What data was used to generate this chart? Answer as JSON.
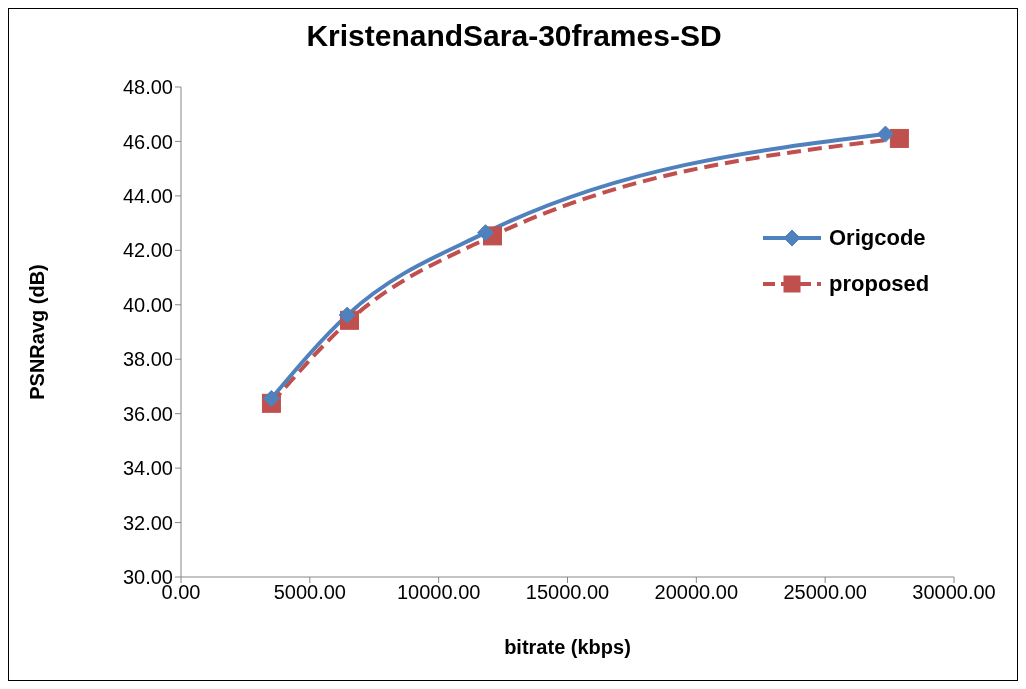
{
  "chart_data": {
    "type": "line",
    "title": "KristenandSara-30frames-SD",
    "xlabel": "bitrate (kbps)",
    "ylabel": "PSNRavg (dB)",
    "xlim": [
      0,
      30000
    ],
    "xticks": [
      {
        "value": 0,
        "label": "0.00"
      },
      {
        "value": 5000,
        "label": "5000.00"
      },
      {
        "value": 10000,
        "label": "10000.00"
      },
      {
        "value": 15000,
        "label": "15000.00"
      },
      {
        "value": 20000,
        "label": "20000.00"
      },
      {
        "value": 25000,
        "label": "25000.00"
      },
      {
        "value": 30000,
        "label": "30000.00"
      }
    ],
    "ylim": [
      30,
      48
    ],
    "yticks": [
      {
        "value": 30,
        "label": "30.00"
      },
      {
        "value": 32,
        "label": "32.00"
      },
      {
        "value": 34,
        "label": "34.00"
      },
      {
        "value": 36,
        "label": "36.00"
      },
      {
        "value": 38,
        "label": "38.00"
      },
      {
        "value": 40,
        "label": "40.00"
      },
      {
        "value": 42,
        "label": "42.00"
      },
      {
        "value": 44,
        "label": "44.00"
      },
      {
        "value": 46,
        "label": "46.00"
      },
      {
        "value": 48,
        "label": "48.00"
      }
    ],
    "grid": false,
    "legend": "right",
    "series": [
      {
        "name": "Origcode",
        "color": "#4f81bd",
        "marker": "diamond",
        "line_style": "solid",
        "x": [
          3510,
          6450,
          11820,
          27340
        ],
        "values": [
          36.56,
          39.62,
          42.65,
          46.27
        ]
      },
      {
        "name": "proposed",
        "color": "#c0504d",
        "marker": "square",
        "line_style": "dashed",
        "x": [
          3510,
          6540,
          12090,
          27880
        ],
        "values": [
          36.38,
          39.43,
          42.53,
          46.11
        ]
      }
    ]
  }
}
